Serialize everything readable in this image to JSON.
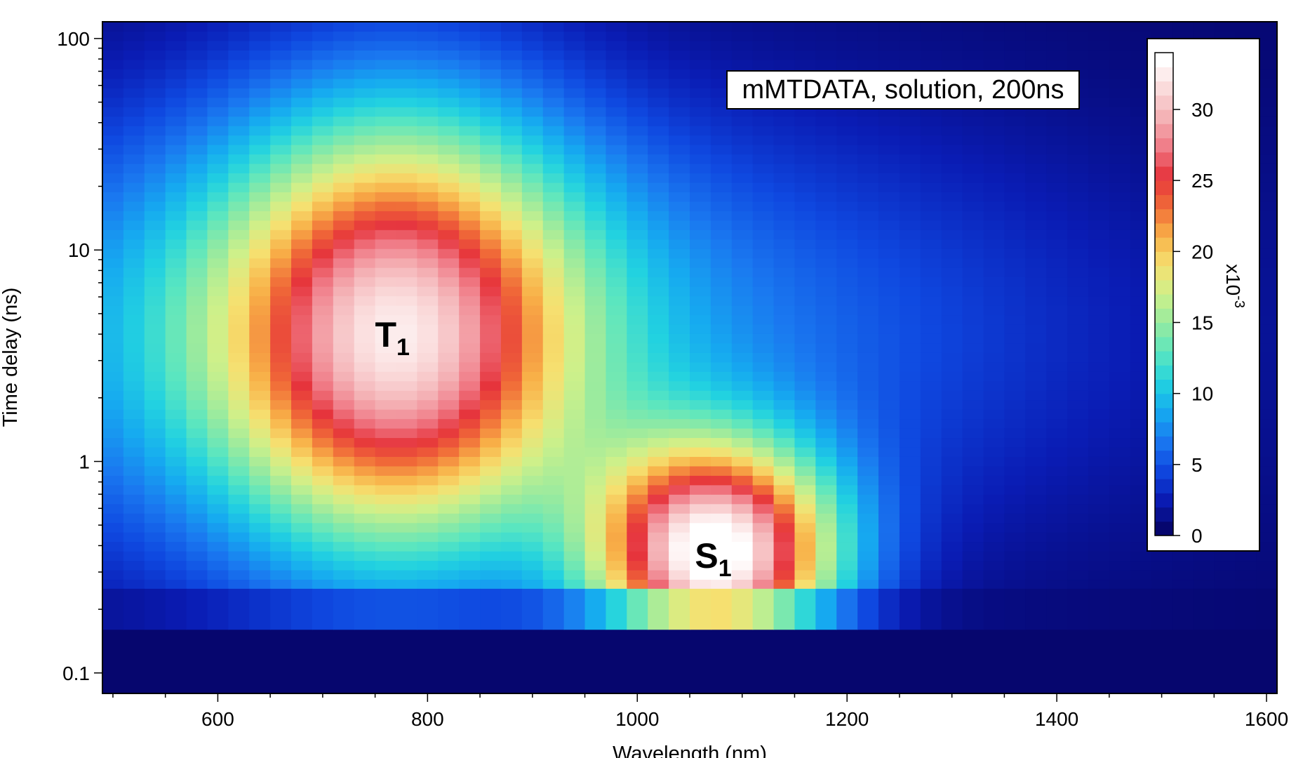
{
  "chart_data": {
    "type": "heatmap",
    "annotation": "mMTDATA, solution, 200ns",
    "xlabel": "Wavelength (nm)",
    "ylabel": "Time delay (ns)",
    "xlim": [
      490,
      1610
    ],
    "ylim": [
      0.08,
      120
    ],
    "yscale": "log",
    "x_ticks": [
      600,
      800,
      1000,
      1200,
      1400,
      1600
    ],
    "y_ticks": [
      0.1,
      1,
      10,
      100
    ],
    "y_tick_labels": [
      "0.1",
      "1",
      "10",
      "100"
    ],
    "colorbar": {
      "range": [
        0,
        34
      ],
      "ticks": [
        0,
        5,
        10,
        15,
        20,
        25,
        30
      ],
      "multiplier": "x10",
      "exponent": "-3",
      "colormap": [
        "#06066e",
        "#0a1cb4",
        "#0f48e0",
        "#1a78f0",
        "#16aaf0",
        "#22d2e0",
        "#5ae6c0",
        "#96eaa0",
        "#cef08a",
        "#f6e070",
        "#f8b048",
        "#f06a38",
        "#e6343c",
        "#f07a86",
        "#f4b0b4",
        "#fadada",
        "#ffffff"
      ]
    },
    "peaks": [
      {
        "species": "T",
        "subscript": "1",
        "x": 770,
        "y": 4.0,
        "sigma_x": 120,
        "sigma_logt": 0.72,
        "amplitude": 24
      },
      {
        "species": "S",
        "subscript": "1",
        "x": 1075,
        "y": 0.36,
        "sigma_x": 80,
        "sigma_logt": 0.36,
        "amplitude": 33
      }
    ],
    "grid": false
  },
  "colors": {
    "background": "#06066e",
    "frame": "#000000"
  }
}
